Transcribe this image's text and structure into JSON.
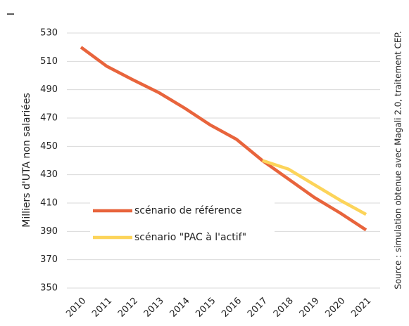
{
  "chart_data": {
    "type": "line",
    "y_label": "Milliers d'UTA non salariées",
    "source": "Source : simulation obtenue avec Magali 2.0, traitement CEP.",
    "categories": [
      "2010",
      "2011",
      "2012",
      "2013",
      "2014",
      "2015",
      "2016",
      "2017",
      "2018",
      "2019",
      "2020",
      "2021"
    ],
    "series": [
      {
        "name": "scénario de référence",
        "color": "#e8643c",
        "values": [
          520,
          506.5,
          497,
          488,
          477,
          465,
          455,
          440,
          427,
          414,
          403,
          391
        ]
      },
      {
        "name": "scénario \"PAC à l'actif\"",
        "color": "#fcd45a",
        "values": [
          null,
          null,
          null,
          null,
          null,
          null,
          null,
          440,
          434,
          423,
          412,
          402
        ]
      }
    ],
    "ylim": [
      350,
      530
    ],
    "yticks": [
      350,
      370,
      390,
      410,
      430,
      450,
      470,
      490,
      510,
      530
    ],
    "grid": true,
    "legend": "lower left"
  }
}
